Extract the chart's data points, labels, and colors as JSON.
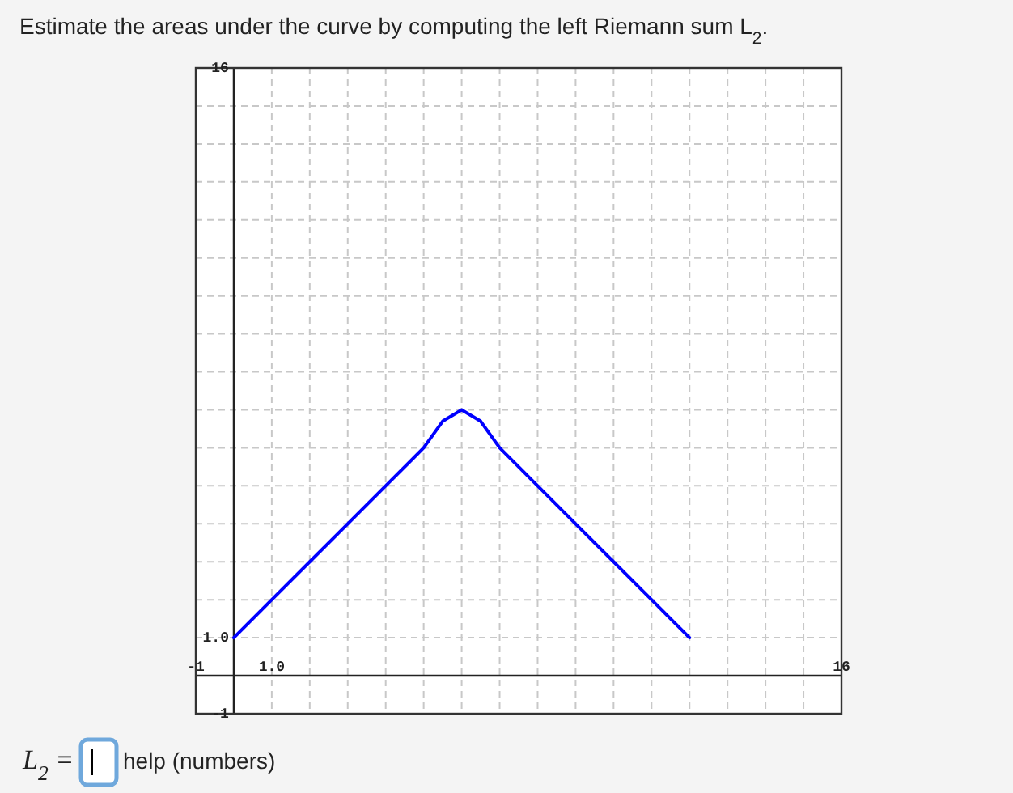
{
  "chart_data": {
    "type": "line",
    "title": "Estimate the areas under the curve by computing the left Riemann sum L$_{2}$.",
    "annotations": [
      "L$_{2}$ =",
      "help (numbers)"
    ],
    "series": [
      {
        "color": "#0000ff",
        "x": [
          0,
          1,
          2,
          3,
          4,
          5,
          5.5,
          6,
          6.5,
          7,
          8,
          9,
          10,
          11,
          12
        ],
        "values": [
          1,
          2,
          3,
          4,
          5,
          6,
          6.7,
          7,
          6.7,
          6,
          5,
          4,
          3,
          2,
          1
        ]
      }
    ],
    "xlim": [
      -1,
      16
    ],
    "ylim": [
      -1,
      16
    ],
    "xticks": [
      {
        "value": -1,
        "label": "-1"
      },
      {
        "value": 0,
        "label": null
      },
      {
        "value": 1,
        "label": "1.0"
      },
      {
        "value": 2,
        "label": null
      },
      {
        "value": 3,
        "label": null
      },
      {
        "value": 4,
        "label": null
      },
      {
        "value": 5,
        "label": null
      },
      {
        "value": 6,
        "label": null
      },
      {
        "value": 7,
        "label": null
      },
      {
        "value": 8,
        "label": null
      },
      {
        "value": 9,
        "label": null
      },
      {
        "value": 10,
        "label": null
      },
      {
        "value": 11,
        "label": null
      },
      {
        "value": 12,
        "label": null
      },
      {
        "value": 13,
        "label": null
      },
      {
        "value": 14,
        "label": null
      },
      {
        "value": 15,
        "label": null
      },
      {
        "value": 16,
        "label": "16"
      }
    ],
    "yticks": [
      {
        "value": -1,
        "label": "-1"
      },
      {
        "value": 0,
        "label": null
      },
      {
        "value": 1,
        "label": "1.0"
      },
      {
        "value": 2,
        "label": null
      },
      {
        "value": 3,
        "label": null
      },
      {
        "value": 4,
        "label": null
      },
      {
        "value": 5,
        "label": null
      },
      {
        "value": 6,
        "label": null
      },
      {
        "value": 7,
        "label": null
      },
      {
        "value": 8,
        "label": null
      },
      {
        "value": 9,
        "label": null
      },
      {
        "value": 10,
        "label": null
      },
      {
        "value": 11,
        "label": null
      },
      {
        "value": 12,
        "label": null
      },
      {
        "value": 13,
        "label": null
      },
      {
        "value": 14,
        "label": null
      },
      {
        "value": 15,
        "label": null
      },
      {
        "value": 16,
        "label": "16"
      }
    ],
    "grid": true
  }
}
